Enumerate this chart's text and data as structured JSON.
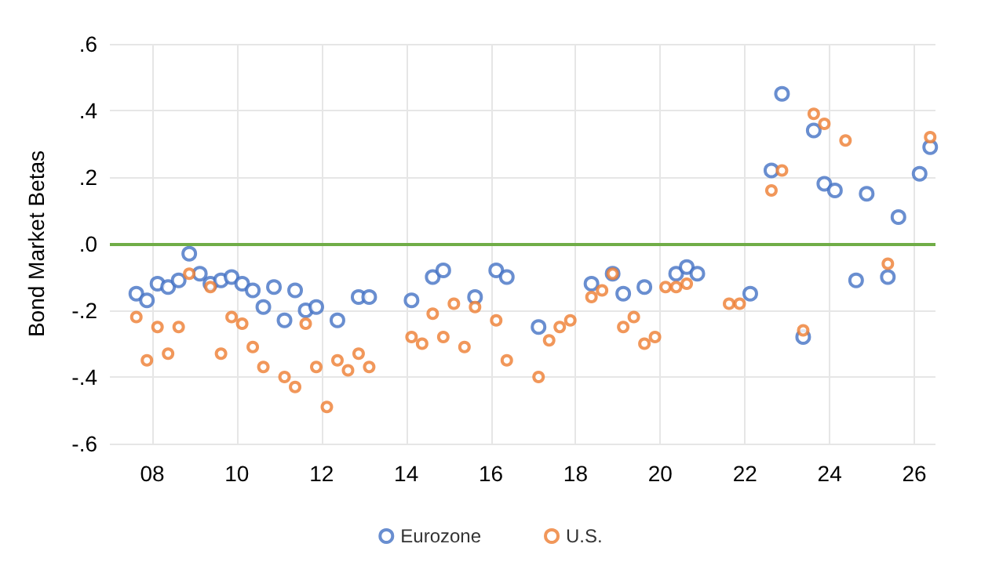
{
  "chart_data": {
    "type": "scatter",
    "ylabel": "Bond Market Betas",
    "xlim": [
      2007,
      2026.5
    ],
    "ylim": [
      -0.6,
      0.6
    ],
    "xticks": [
      {
        "value": 2008,
        "label": "08"
      },
      {
        "value": 2010,
        "label": "10"
      },
      {
        "value": 2012,
        "label": "12"
      },
      {
        "value": 2014,
        "label": "14"
      },
      {
        "value": 2016,
        "label": "16"
      },
      {
        "value": 2018,
        "label": "18"
      },
      {
        "value": 2020,
        "label": "20"
      },
      {
        "value": 2022,
        "label": "22"
      },
      {
        "value": 2024,
        "label": "24"
      },
      {
        "value": 2026,
        "label": "26"
      }
    ],
    "yticks": [
      {
        "value": -0.6,
        "label": "-.6"
      },
      {
        "value": -0.4,
        "label": "-.4"
      },
      {
        "value": -0.2,
        "label": "-.2"
      },
      {
        "value": 0,
        "label": ".0"
      },
      {
        "value": 0.2,
        "label": ".2"
      },
      {
        "value": 0.4,
        "label": ".4"
      },
      {
        "value": 0.6,
        "label": ".6"
      }
    ],
    "grid": true,
    "legend": "bottom",
    "marker": "circle",
    "ref_lines": [
      {
        "axis": "y",
        "value": 0,
        "color": "#70ad47"
      }
    ],
    "series": [
      {
        "name": "Eurozone",
        "color": "#4472c4",
        "x": [
          2007.625,
          2007.875,
          2008.125,
          2008.375,
          2008.625,
          2008.875,
          2009.125,
          2009.375,
          2009.625,
          2009.875,
          2010.125,
          2010.375,
          2010.625,
          2010.875,
          2011.125,
          2011.375,
          2011.625,
          2011.875,
          2012.375,
          2012.875,
          2013.125,
          2014.125,
          2014.625,
          2014.875,
          2015.625,
          2016.125,
          2016.375,
          2017.125,
          2018.375,
          2018.875,
          2019.125,
          2019.625,
          2020.375,
          2020.625,
          2020.875,
          2022.125,
          2022.625,
          2022.875,
          2023.375,
          2023.625,
          2023.875,
          2024.125,
          2024.625,
          2024.875,
          2025.375,
          2025.625,
          2026.125,
          2026.375
        ],
        "values": [
          -0.15,
          -0.17,
          -0.12,
          -0.13,
          -0.11,
          -0.03,
          -0.09,
          -0.12,
          -0.11,
          -0.1,
          -0.12,
          -0.14,
          -0.19,
          -0.13,
          -0.23,
          -0.14,
          -0.2,
          -0.19,
          -0.23,
          -0.16,
          -0.16,
          -0.17,
          -0.1,
          -0.08,
          -0.16,
          -0.08,
          -0.1,
          -0.25,
          -0.12,
          -0.09,
          -0.15,
          -0.13,
          -0.09,
          -0.07,
          -0.09,
          -0.15,
          0.22,
          0.45,
          -0.28,
          0.34,
          0.18,
          0.16,
          -0.11,
          0.15,
          -0.1,
          0.08,
          0.21,
          0.29
        ]
      },
      {
        "name": "U.S.",
        "color": "#ed7d31",
        "x": [
          2007.625,
          2007.875,
          2008.125,
          2008.375,
          2008.625,
          2008.875,
          2009.375,
          2009.625,
          2009.875,
          2010.125,
          2010.375,
          2010.625,
          2011.125,
          2011.375,
          2011.625,
          2011.875,
          2012.125,
          2012.375,
          2012.625,
          2012.875,
          2013.125,
          2014.125,
          2014.375,
          2014.625,
          2014.875,
          2015.125,
          2015.375,
          2015.625,
          2016.125,
          2016.375,
          2017.125,
          2017.375,
          2017.625,
          2017.875,
          2018.375,
          2018.625,
          2018.875,
          2019.125,
          2019.375,
          2019.625,
          2019.875,
          2020.125,
          2020.375,
          2020.625,
          2021.625,
          2021.875,
          2022.625,
          2022.875,
          2023.375,
          2023.625,
          2023.875,
          2024.375,
          2025.375,
          2026.375
        ],
        "values": [
          -0.22,
          -0.35,
          -0.25,
          -0.33,
          -0.25,
          -0.09,
          -0.13,
          -0.33,
          -0.22,
          -0.24,
          -0.31,
          -0.37,
          -0.4,
          -0.43,
          -0.24,
          -0.37,
          -0.49,
          -0.35,
          -0.38,
          -0.33,
          -0.37,
          -0.28,
          -0.3,
          -0.21,
          -0.28,
          -0.18,
          -0.31,
          -0.19,
          -0.23,
          -0.35,
          -0.4,
          -0.29,
          -0.25,
          -0.23,
          -0.16,
          -0.14,
          -0.09,
          -0.25,
          -0.22,
          -0.3,
          -0.28,
          -0.13,
          -0.13,
          -0.12,
          -0.18,
          -0.18,
          0.16,
          0.22,
          -0.26,
          0.39,
          0.36,
          0.31,
          -0.06,
          0.32
        ]
      }
    ]
  }
}
